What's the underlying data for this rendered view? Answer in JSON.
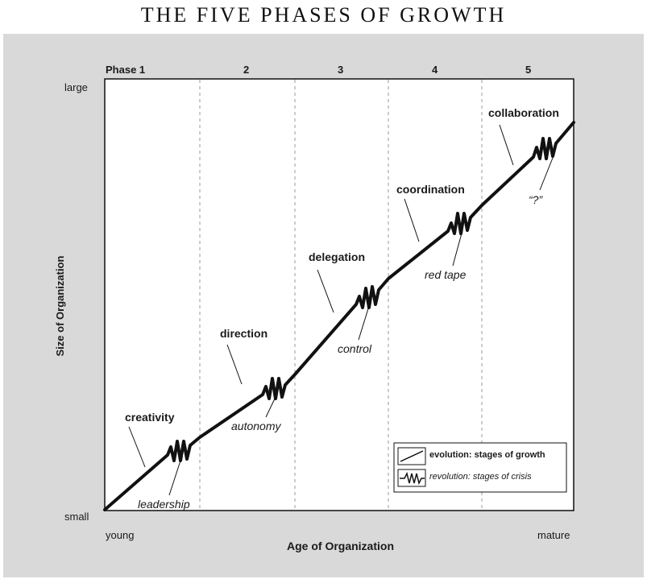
{
  "title": "THE FIVE PHASES OF GROWTH",
  "phases": [
    "Phase 1",
    "2",
    "3",
    "4",
    "5"
  ],
  "y_axis": {
    "label": "Size of Organization",
    "top": "large",
    "bottom": "small"
  },
  "x_axis": {
    "label": "Age of Organization",
    "left": "young",
    "right": "mature"
  },
  "evolutions": [
    "creativity",
    "direction",
    "delegation",
    "coordination",
    "collaboration"
  ],
  "revolutions": [
    "leadership",
    "autonomy",
    "control",
    "red tape",
    "“?”"
  ],
  "legend": {
    "evolution_bold": "evolution:",
    "evolution_rest": "stages of growth",
    "revolution_ital": "revolution:",
    "revolution_rest": "stages of crisis"
  }
}
